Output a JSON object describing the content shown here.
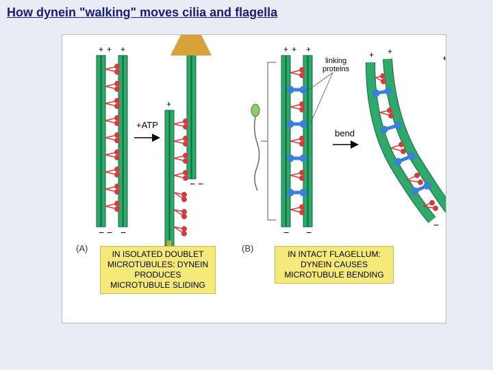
{
  "title": "How dynein \"walking\" moves cilia and flagella",
  "panelA": {
    "label": "(A)",
    "caption": "IN ISOLATED DOUBLET MICROTUBULES: DYNEIN PRODUCES MICROTUBULE SLIDING",
    "atp": "+ATP"
  },
  "panelB": {
    "label": "(B)",
    "caption": "IN INTACT FLAGELLUM: DYNEIN CAUSES MICROTUBULE BENDING",
    "bend": "bend",
    "linking": "linking\nproteins"
  },
  "colors": {
    "bg": "#e8ecf5",
    "white": "#ffffff",
    "tubule_fill": "#2fa86b",
    "tubule_stroke": "#0b6b3a",
    "dynein": "#d83a3a",
    "linker": "#3a7fd8",
    "arrow": "#d8a038",
    "caption_bg": "#f5e97a",
    "link_line": "#555555"
  },
  "geometry": {
    "tubule_w": 6,
    "dynein_head_r": 3.2,
    "plus": "+",
    "minus": "−"
  }
}
